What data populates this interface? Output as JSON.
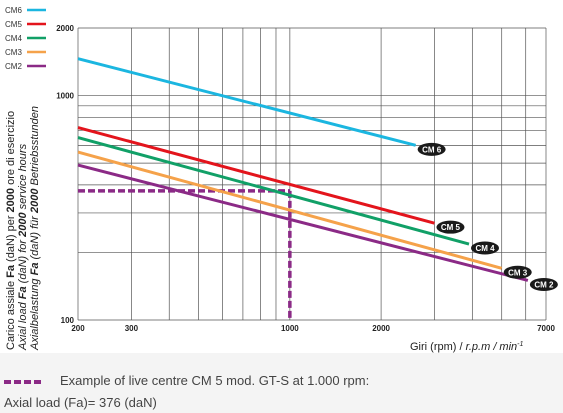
{
  "chart_data": {
    "type": "line",
    "x_scale": "log",
    "y_scale": "log",
    "xlim": [
      200,
      7000
    ],
    "ylim": [
      100,
      2000
    ],
    "grid": true,
    "legend_position": "top-left",
    "xlabel_parts": [
      "Giri (rpm) / ",
      "r.p.m / min",
      "-1"
    ],
    "ylabel_lines": [
      [
        "Carico assiale ",
        "Fa",
        " (daN) per ",
        "2000",
        " ore di esercizio"
      ],
      [
        "Axial load ",
        "Fa",
        " (daN) for ",
        "2000",
        " service hours"
      ],
      [
        "Axialbelastung ",
        "Fa",
        " (daN) für ",
        "2000",
        " Betriebsstunden"
      ]
    ],
    "x_tick_labels": [
      {
        "value": 200,
        "label": "200"
      },
      {
        "value": 300,
        "label": "300"
      },
      {
        "value": 1000,
        "label": "1000"
      },
      {
        "value": 2000,
        "label": "2000"
      },
      {
        "value": 7000,
        "label": "7000"
      }
    ],
    "y_tick_labels": [
      {
        "value": 100,
        "label": "100"
      },
      {
        "value": 1000,
        "label": "1000"
      },
      {
        "value": 2000,
        "label": "2000"
      }
    ],
    "series": [
      {
        "name": "CM6",
        "color": "#1bb6e0",
        "x": [
          200,
          2600
        ],
        "y": [
          1460,
          600
        ]
      },
      {
        "name": "CM5",
        "color": "#e3141c",
        "x": [
          200,
          3000
        ],
        "y": [
          720,
          270
        ]
      },
      {
        "name": "CM4",
        "color": "#11a067",
        "x": [
          200,
          3900
        ],
        "y": [
          650,
          218
        ]
      },
      {
        "name": "CM3",
        "color": "#f5a24a",
        "x": [
          200,
          5000
        ],
        "y": [
          560,
          170
        ]
      },
      {
        "name": "CM2",
        "color": "#8b2a86",
        "x": [
          200,
          6100
        ],
        "y": [
          490,
          150
        ]
      }
    ],
    "series_end_labels": [
      "CM 6",
      "CM 5",
      "CM 4",
      "CM 3",
      "CM 2"
    ],
    "example": {
      "x": 1000,
      "y": 376,
      "color": "#8b2a86"
    }
  },
  "caption": {
    "line1": "Example of live centre CM 5 mod. GT-S at 1.000 rpm:",
    "line2": "Axial load (Fa)= 376 (daN)"
  }
}
